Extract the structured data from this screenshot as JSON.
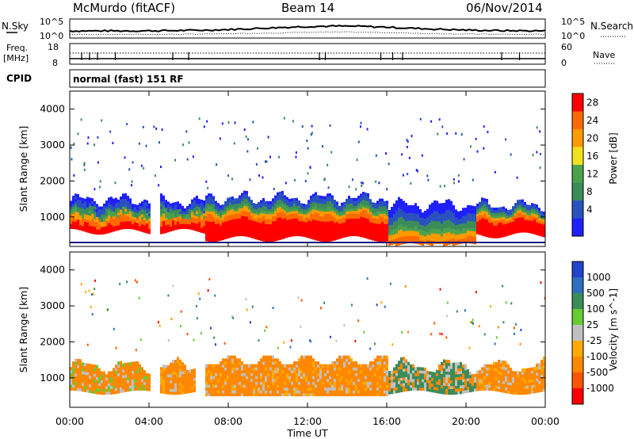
{
  "header": {
    "station": "McMurdo (fitACF)",
    "beam": "Beam 14",
    "date": "06/Nov/2014"
  },
  "summary_panels": {
    "nsky_label": "N.Sky",
    "nsky_ticks": [
      "10^5",
      "10^0"
    ],
    "nsearch_label": "N.Search",
    "nsearch_ticks": [
      "10^5",
      "10^0"
    ],
    "freq_label": "Freq.",
    "freq_unit": "[MHz]",
    "freq_ticks": [
      "18",
      "8"
    ],
    "nave_label": "Nave",
    "nave_ticks": [
      "60",
      "0"
    ],
    "cpid_label": "CPID",
    "cpid_text": "normal (fast) 151 RF"
  },
  "colors": {
    "frame": "#000000",
    "power_scale": [
      "#2020ff",
      "#2a52be",
      "#3c8c5a",
      "#4ca24c",
      "#f0e020",
      "#ff9a00",
      "#ff6a00",
      "#ff0000"
    ],
    "velocity_scale": [
      "#2244cc",
      "#2f6fbf",
      "#3c8c5a",
      "#66cc33",
      "#c0c0c0",
      "#ffaa00",
      "#ff8800",
      "#ff5500",
      "#ff0000"
    ]
  },
  "chart_data": [
    {
      "type": "heatmap",
      "title": "Power",
      "ylabel": "Slant Range [km]",
      "ylim": [
        180,
        4500
      ],
      "yticks": [
        "4000",
        "3000",
        "2000",
        "1000"
      ],
      "xlim": [
        "00:00",
        "24:00"
      ],
      "colorbar": {
        "label": "Power [dB]",
        "ticks": [
          "28",
          "24",
          "20",
          "16",
          "12",
          "8",
          "4"
        ],
        "range": [
          0,
          30
        ]
      },
      "bands": [
        {
          "t0": 0.0,
          "t1": 4.0,
          "r0": 600,
          "r1": 1450,
          "level": "mixed"
        },
        {
          "t0": 4.5,
          "t1": 6.8,
          "r0": 600,
          "r1": 1400,
          "level": "mixed"
        },
        {
          "t0": 6.8,
          "t1": 16.0,
          "r0": 400,
          "r1": 1500,
          "level": "high"
        },
        {
          "t0": 16.0,
          "t1": 20.5,
          "r0": 200,
          "r1": 1300,
          "level": "low"
        },
        {
          "t0": 20.5,
          "t1": 24.0,
          "r0": 500,
          "r1": 1300,
          "level": "high"
        }
      ]
    },
    {
      "type": "heatmap",
      "title": "Velocity",
      "ylabel": "Slant Range [km]",
      "xlabel": "Time UT",
      "ylim": [
        180,
        4500
      ],
      "yticks": [
        "4000",
        "3000",
        "2000",
        "1000"
      ],
      "xticks": [
        "00:00",
        "04:00",
        "08:00",
        "12:00",
        "16:00",
        "20:00",
        "00:00"
      ],
      "colorbar": {
        "label": "Velocity [m s^-1]",
        "ticks": [
          "1000",
          "500",
          "100",
          "25",
          "-25",
          "-100",
          "-500",
          "-1000"
        ],
        "range": [
          -1200,
          1200
        ]
      }
    }
  ]
}
